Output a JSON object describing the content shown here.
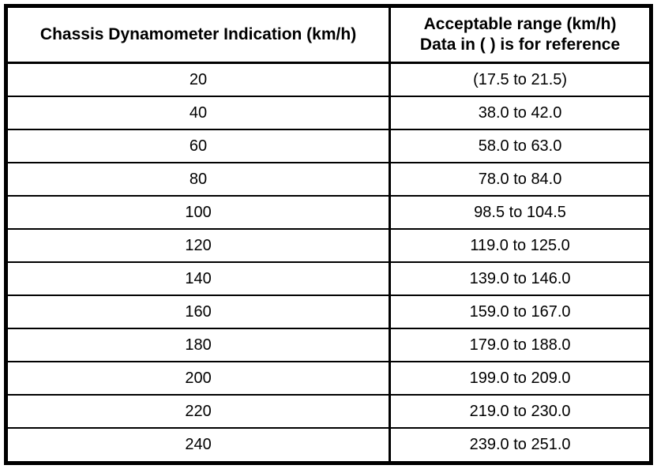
{
  "table": {
    "title": "chassis-dynamometer-speed-calibration",
    "header": {
      "left": "Chassis Dynamometer Indication (km/h)",
      "right_line1": "Acceptable range (km/h)",
      "right_line2": "Data in ( ) is for reference"
    },
    "rows": [
      {
        "indication": "20",
        "range": "(17.5 to 21.5)"
      },
      {
        "indication": "40",
        "range": "38.0 to 42.0"
      },
      {
        "indication": "60",
        "range": "58.0 to 63.0"
      },
      {
        "indication": "80",
        "range": "78.0 to 84.0"
      },
      {
        "indication": "100",
        "range": "98.5 to 104.5"
      },
      {
        "indication": "120",
        "range": "119.0 to 125.0"
      },
      {
        "indication": "140",
        "range": "139.0 to 146.0"
      },
      {
        "indication": "160",
        "range": "159.0 to 167.0"
      },
      {
        "indication": "180",
        "range": "179.0 to 188.0"
      },
      {
        "indication": "200",
        "range": "199.0 to 209.0"
      },
      {
        "indication": "220",
        "range": "219.0 to 230.0"
      },
      {
        "indication": "240",
        "range": "239.0 to 251.0"
      }
    ],
    "colors": {
      "border": "#000000",
      "background": "#ffffff",
      "text": "#000000"
    }
  }
}
